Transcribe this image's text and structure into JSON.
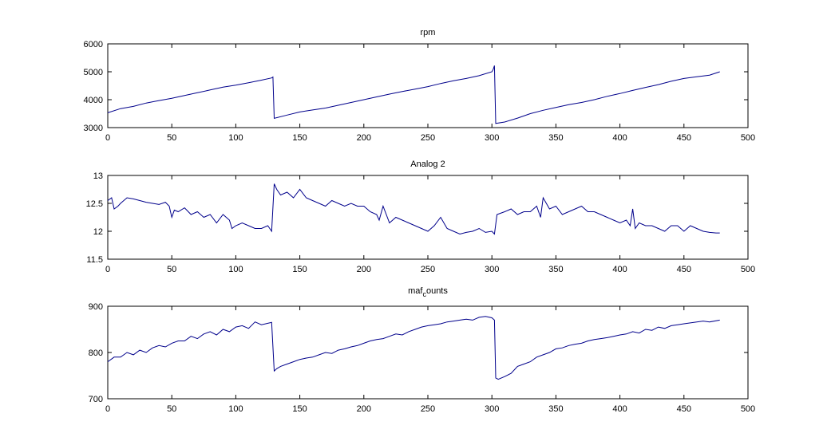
{
  "figure": {
    "line_color": "#00008b",
    "axes_color": "#000000",
    "background": "#ffffff"
  },
  "chart_data": [
    {
      "type": "line",
      "title": "rpm",
      "xlim": [
        0,
        500
      ],
      "ylim": [
        3000,
        6000
      ],
      "xticks": [
        "0",
        "50",
        "100",
        "150",
        "200",
        "250",
        "300",
        "350",
        "400",
        "450",
        "500"
      ],
      "yticks": [
        "3000",
        "4000",
        "5000",
        "6000"
      ],
      "grid": false,
      "x": [
        0,
        10,
        20,
        30,
        40,
        50,
        60,
        70,
        80,
        90,
        100,
        110,
        120,
        128,
        129,
        130,
        140,
        150,
        160,
        170,
        180,
        190,
        200,
        210,
        220,
        230,
        240,
        250,
        260,
        270,
        280,
        290,
        300,
        301,
        302,
        303,
        310,
        320,
        330,
        340,
        350,
        360,
        370,
        380,
        390,
        400,
        410,
        420,
        430,
        440,
        450,
        460,
        470,
        478
      ],
      "values": [
        3530,
        3680,
        3760,
        3880,
        3970,
        4050,
        4150,
        4250,
        4350,
        4450,
        4520,
        4610,
        4700,
        4780,
        4810,
        3330,
        3450,
        3560,
        3630,
        3700,
        3800,
        3900,
        4000,
        4100,
        4200,
        4290,
        4380,
        4470,
        4580,
        4680,
        4760,
        4860,
        5000,
        5080,
        5220,
        3150,
        3200,
        3340,
        3500,
        3620,
        3720,
        3820,
        3900,
        4000,
        4120,
        4220,
        4330,
        4440,
        4540,
        4660,
        4760,
        4820,
        4880,
        5000
      ]
    },
    {
      "type": "line",
      "title": "Analog 2",
      "xlim": [
        0,
        500
      ],
      "ylim": [
        11.5,
        13
      ],
      "xticks": [
        "0",
        "50",
        "100",
        "150",
        "200",
        "250",
        "300",
        "350",
        "400",
        "450",
        "500"
      ],
      "yticks": [
        "11.5",
        "12",
        "12.5",
        "13"
      ],
      "grid": false,
      "x": [
        0,
        3,
        5,
        8,
        10,
        15,
        20,
        25,
        30,
        35,
        40,
        45,
        48,
        50,
        52,
        55,
        60,
        65,
        70,
        75,
        80,
        85,
        90,
        95,
        97,
        100,
        105,
        110,
        115,
        120,
        125,
        128,
        130,
        132,
        135,
        140,
        145,
        150,
        155,
        160,
        165,
        170,
        175,
        180,
        185,
        190,
        195,
        200,
        205,
        210,
        212,
        215,
        220,
        225,
        230,
        235,
        240,
        245,
        250,
        255,
        260,
        265,
        270,
        275,
        280,
        285,
        290,
        295,
        300,
        302,
        304,
        310,
        315,
        320,
        325,
        330,
        335,
        338,
        340,
        345,
        350,
        355,
        360,
        365,
        370,
        375,
        380,
        385,
        390,
        395,
        400,
        405,
        408,
        410,
        412,
        415,
        420,
        425,
        430,
        435,
        440,
        445,
        450,
        455,
        460,
        465,
        470,
        475,
        478
      ],
      "values": [
        12.55,
        12.6,
        12.4,
        12.45,
        12.5,
        12.6,
        12.58,
        12.55,
        12.52,
        12.5,
        12.48,
        12.52,
        12.45,
        12.25,
        12.38,
        12.35,
        12.42,
        12.3,
        12.35,
        12.25,
        12.3,
        12.15,
        12.3,
        12.2,
        12.05,
        12.1,
        12.15,
        12.1,
        12.05,
        12.05,
        12.1,
        12.0,
        12.85,
        12.75,
        12.65,
        12.7,
        12.6,
        12.75,
        12.6,
        12.55,
        12.5,
        12.45,
        12.55,
        12.5,
        12.45,
        12.5,
        12.45,
        12.45,
        12.35,
        12.3,
        12.2,
        12.45,
        12.15,
        12.25,
        12.2,
        12.15,
        12.1,
        12.05,
        12.0,
        12.1,
        12.25,
        12.05,
        12.0,
        11.95,
        11.98,
        12.0,
        12.05,
        11.98,
        12.0,
        11.95,
        12.3,
        12.35,
        12.4,
        12.3,
        12.35,
        12.35,
        12.45,
        12.25,
        12.6,
        12.4,
        12.45,
        12.3,
        12.35,
        12.4,
        12.45,
        12.35,
        12.35,
        12.3,
        12.25,
        12.2,
        12.15,
        12.2,
        12.1,
        12.4,
        12.05,
        12.15,
        12.1,
        12.1,
        12.05,
        12.0,
        12.1,
        12.1,
        12.0,
        12.1,
        12.05,
        12.0,
        11.98,
        11.97,
        11.97
      ]
    },
    {
      "type": "line",
      "title_main": "maf",
      "title_sub": "c",
      "title_tail": "ounts",
      "xlim": [
        0,
        500
      ],
      "ylim": [
        700,
        900
      ],
      "xticks": [
        "0",
        "50",
        "100",
        "150",
        "200",
        "250",
        "300",
        "350",
        "400",
        "450",
        "500"
      ],
      "yticks": [
        "700",
        "800",
        "900"
      ],
      "grid": false,
      "x": [
        0,
        5,
        10,
        15,
        20,
        25,
        30,
        35,
        40,
        45,
        50,
        55,
        60,
        65,
        70,
        75,
        80,
        85,
        90,
        95,
        100,
        105,
        110,
        115,
        120,
        128,
        130,
        132,
        135,
        140,
        145,
        150,
        155,
        160,
        165,
        170,
        175,
        180,
        185,
        190,
        195,
        200,
        205,
        210,
        215,
        220,
        225,
        230,
        235,
        240,
        245,
        250,
        255,
        260,
        265,
        270,
        275,
        280,
        285,
        290,
        295,
        300,
        302,
        303,
        305,
        310,
        315,
        320,
        325,
        330,
        335,
        340,
        345,
        350,
        355,
        360,
        365,
        370,
        375,
        380,
        385,
        390,
        395,
        400,
        405,
        410,
        415,
        420,
        425,
        430,
        435,
        440,
        445,
        450,
        455,
        460,
        465,
        470,
        478
      ],
      "values": [
        780,
        790,
        790,
        800,
        795,
        805,
        800,
        810,
        815,
        812,
        820,
        825,
        825,
        835,
        830,
        840,
        845,
        838,
        850,
        845,
        855,
        858,
        852,
        866,
        860,
        865,
        760,
        765,
        770,
        775,
        780,
        785,
        788,
        790,
        795,
        800,
        798,
        805,
        808,
        812,
        815,
        820,
        825,
        828,
        830,
        835,
        840,
        838,
        845,
        850,
        855,
        858,
        860,
        862,
        866,
        868,
        870,
        872,
        870,
        876,
        878,
        875,
        870,
        745,
        742,
        748,
        755,
        770,
        775,
        780,
        790,
        795,
        800,
        808,
        810,
        815,
        818,
        820,
        825,
        828,
        830,
        832,
        835,
        838,
        840,
        845,
        842,
        850,
        848,
        855,
        852,
        858,
        860,
        862,
        864,
        866,
        868,
        866,
        870
      ]
    }
  ]
}
